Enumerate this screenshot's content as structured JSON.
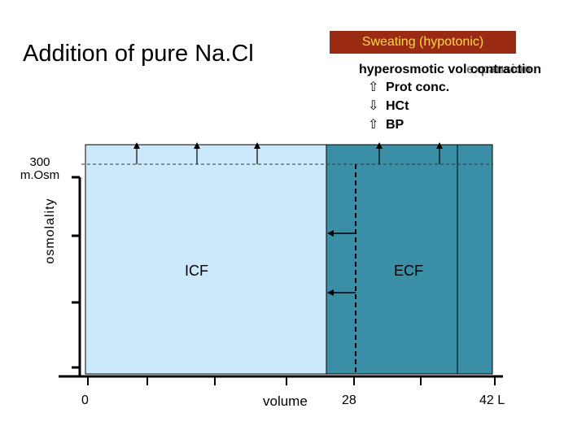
{
  "title": "Addition of pure Na.Cl",
  "scenario_box": "Sweating (hypotonic)",
  "effect": {
    "heading": "hyperosmotic vol contraction",
    "overlay": "expansion",
    "rows": [
      {
        "arrow": "⇧",
        "label": "Prot conc."
      },
      {
        "arrow": "⇩",
        "label": "HCt"
      },
      {
        "arrow": "⇧",
        "label": "BP"
      }
    ]
  },
  "axis": {
    "y_label": "osmolality",
    "reference_line": "300\nm.Osm",
    "x_label": "volume",
    "ticks": [
      "0",
      "28",
      "42 L"
    ]
  },
  "compartments": {
    "icf": {
      "label": "ICF",
      "color": "#cce9fb"
    },
    "ecf": {
      "label": "ECF",
      "color": "#3a8fa6"
    }
  },
  "colors": {
    "scenario_bg": "#9b2a12",
    "scenario_text": "#ffd84a",
    "line": "#000000"
  }
}
